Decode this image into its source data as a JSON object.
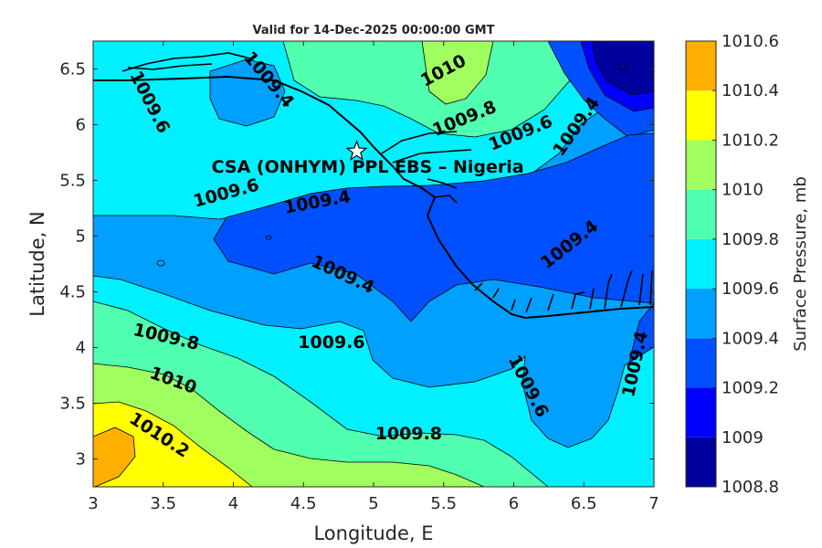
{
  "chart_data": {
    "type": "contour",
    "title": "Valid for 14-Dec-2025 00:00:00 GMT",
    "xlabel": "Longitude, E",
    "ylabel": "Latitude, N",
    "xlim": [
      3,
      7
    ],
    "ylim": [
      2.75,
      6.75
    ],
    "xticks": [
      "3",
      "3.5",
      "4",
      "4.5",
      "5",
      "5.5",
      "6",
      "6.5",
      "7"
    ],
    "yticks": [
      "3",
      "3.5",
      "4",
      "4.5",
      "5",
      "5.5",
      "6",
      "6.5"
    ],
    "colorbar": {
      "label": "Surface Pressure, mb",
      "levels": [
        1008.8,
        1009,
        1009.2,
        1009.4,
        1009.6,
        1009.8,
        1010,
        1010.2,
        1010.4,
        1010.6
      ],
      "tick_labels": [
        "1008.8",
        "1009",
        "1009.2",
        "1009.4",
        "1009.6",
        "1009.8",
        "1010",
        "1010.2",
        "1010.4",
        "1010.6"
      ],
      "colors": [
        "#00009f",
        "#0000ff",
        "#0050ff",
        "#00a0ff",
        "#00f0ff",
        "#50ffaf",
        "#a0ff5f",
        "#ffff00",
        "#ffaf00",
        "#ff5f00"
      ]
    },
    "station": {
      "label": "CSA (ONHYM) PPL EBS – Nigeria",
      "lon": 4.88,
      "lat": 5.76
    },
    "contour_labels": [
      {
        "text": "1009.6",
        "lon": 3.4,
        "lat": 6.2,
        "angle": 63
      },
      {
        "text": "1009.4",
        "lon": 4.25,
        "lat": 6.4,
        "angle": 50
      },
      {
        "text": "1010",
        "lon": 5.5,
        "lat": 6.48,
        "angle": -28
      },
      {
        "text": "1009.8",
        "lon": 5.65,
        "lat": 6.05,
        "angle": -22
      },
      {
        "text": "1009.6",
        "lon": 6.05,
        "lat": 5.92,
        "angle": -22
      },
      {
        "text": "1009.4",
        "lon": 6.45,
        "lat": 5.98,
        "angle": -55
      },
      {
        "text": "1009.6",
        "lon": 3.95,
        "lat": 5.38,
        "angle": -15
      },
      {
        "text": "1009.4",
        "lon": 4.6,
        "lat": 5.3,
        "angle": -10
      },
      {
        "text": "1009.4",
        "lon": 6.4,
        "lat": 4.92,
        "angle": -38
      },
      {
        "text": "1009.4",
        "lon": 4.78,
        "lat": 4.65,
        "angle": 25
      },
      {
        "text": "1009.8",
        "lon": 3.52,
        "lat": 4.09,
        "angle": 13
      },
      {
        "text": "1009.6",
        "lon": 4.7,
        "lat": 4.04,
        "angle": 0
      },
      {
        "text": "1010",
        "lon": 3.57,
        "lat": 3.7,
        "angle": 20
      },
      {
        "text": "1010.2",
        "lon": 3.47,
        "lat": 3.21,
        "angle": 33
      },
      {
        "text": "1009.8",
        "lon": 5.25,
        "lat": 3.22,
        "angle": 0
      },
      {
        "text": "1009.6",
        "lon": 6.1,
        "lat": 3.65,
        "angle": 63
      },
      {
        "text": "1009.4",
        "lon": 6.87,
        "lat": 3.85,
        "angle": -78
      }
    ]
  }
}
